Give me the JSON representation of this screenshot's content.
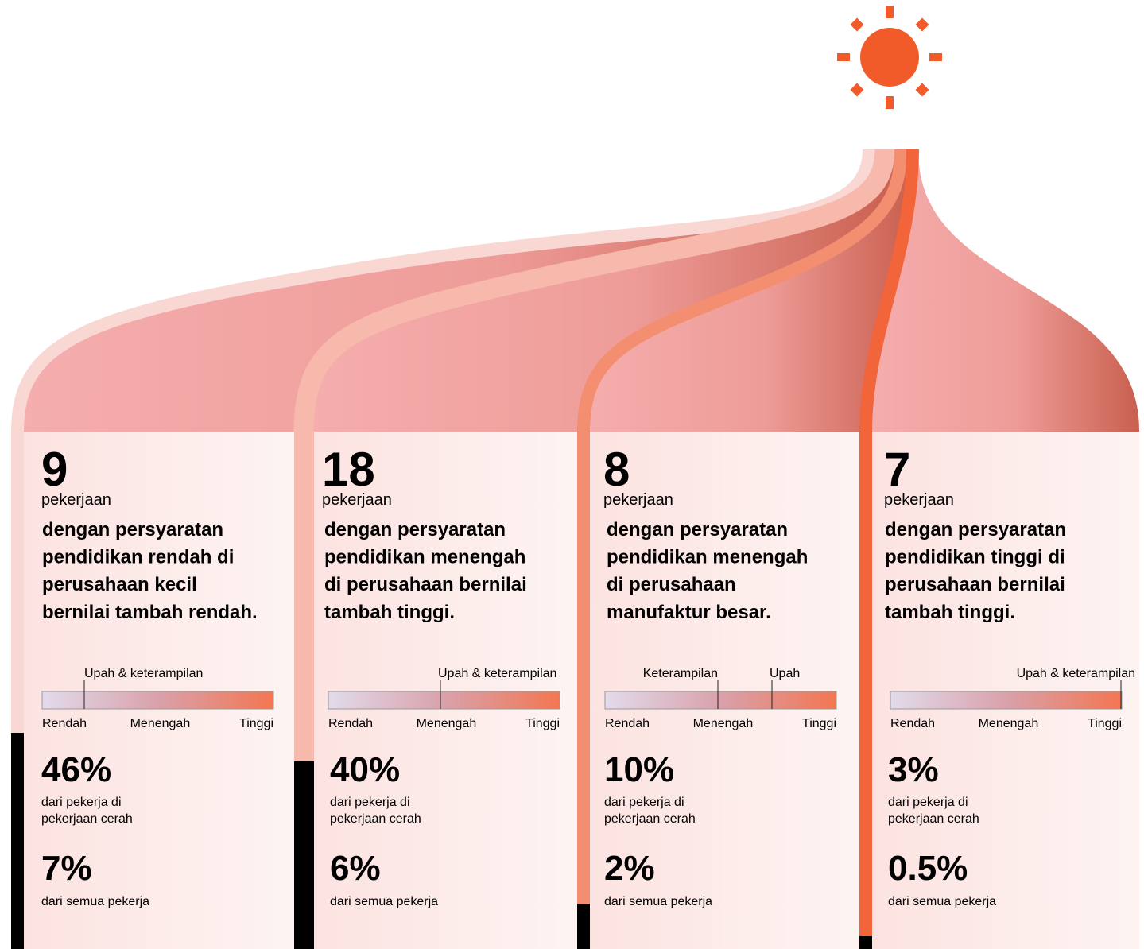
{
  "columns": [
    {
      "count": "9",
      "unit": "pekerjaan",
      "description": [
        "dengan persyaratan",
        "pendidikan rendah di",
        "perusahaan kecil",
        "bernilai tambah rendah."
      ],
      "scale_markers": [
        "Upah & keterampilan"
      ],
      "scale_labels": [
        "Rendah",
        "Menengah",
        "Tinggi"
      ],
      "share_bright": "46%",
      "share_bright_label": [
        "dari pekerja di",
        "pekerjaan cerah"
      ],
      "share_all": "7%",
      "share_all_label": "dari semua pekerja"
    },
    {
      "count": "18",
      "unit": "pekerjaan",
      "description": [
        "dengan persyaratan",
        "pendidikan menengah",
        "di perusahaan bernilai",
        "tambah tinggi."
      ],
      "scale_markers": [
        "Upah & keterampilan"
      ],
      "scale_labels": [
        "Rendah",
        "Menengah",
        "Tinggi"
      ],
      "share_bright": "40%",
      "share_bright_label": [
        "dari pekerja di",
        "pekerjaan cerah"
      ],
      "share_all": "6%",
      "share_all_label": "dari semua pekerja"
    },
    {
      "count": "8",
      "unit": "pekerjaan",
      "description": [
        "dengan persyaratan",
        "pendidikan menengah",
        "di perusahaan",
        "manufaktur besar."
      ],
      "scale_markers": [
        "Keterampilan",
        "Upah"
      ],
      "scale_labels": [
        "Rendah",
        "Menengah",
        "Tinggi"
      ],
      "share_bright": "10%",
      "share_bright_label": [
        "dari pekerja di",
        "pekerjaan cerah"
      ],
      "share_all": "2%",
      "share_all_label": "dari semua pekerja"
    },
    {
      "count": "7",
      "unit": "pekerjaan",
      "description": [
        "dengan persyaratan",
        "pendidikan tinggi di",
        "perusahaan bernilai",
        "tambah tinggi."
      ],
      "scale_markers": [
        "Upah & keterampilan"
      ],
      "scale_labels": [
        "Rendah",
        "Menengah",
        "Tinggi"
      ],
      "share_bright": "3%",
      "share_bright_label": [
        "dari pekerja di",
        "pekerjaan cerah"
      ],
      "share_all": "0.5%",
      "share_all_label": "dari semua pekerja"
    }
  ]
}
